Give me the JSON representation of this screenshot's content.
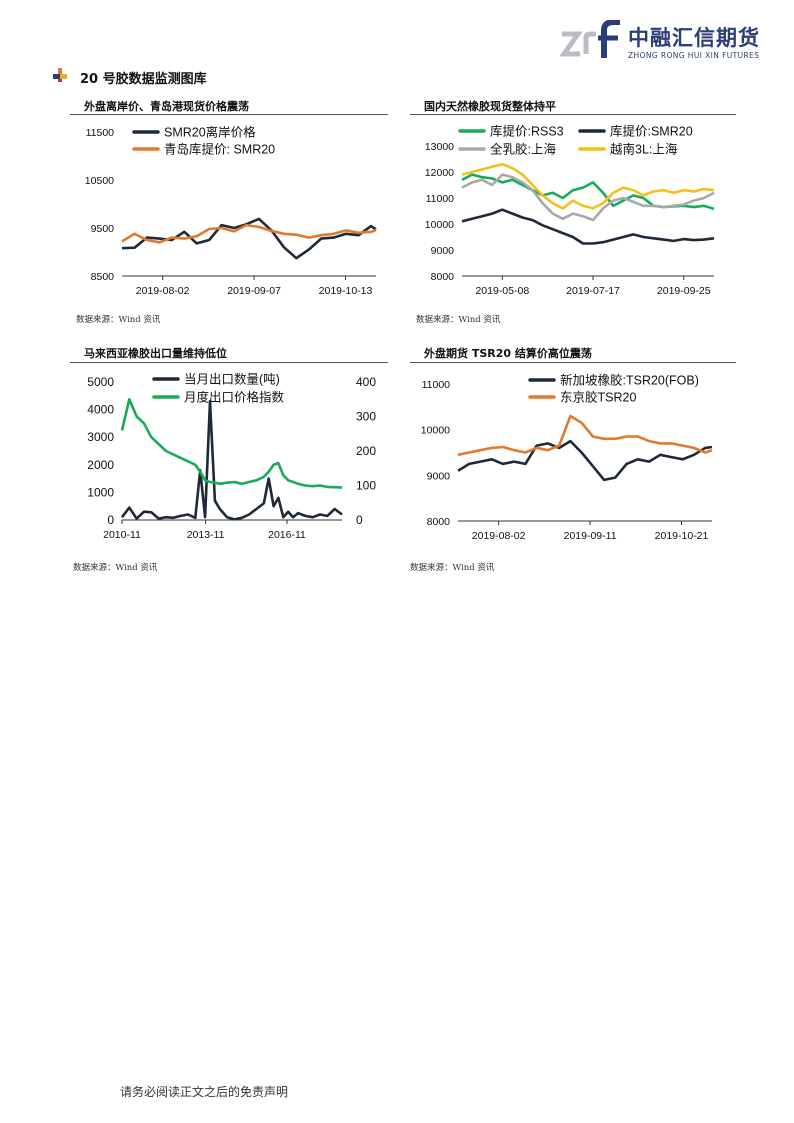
{
  "header": {
    "logo_cn": "中融汇信期货",
    "logo_en": "ZHONG RONG HUI XIN FUTURES"
  },
  "section_title": "20 号胶数据监测图库",
  "footer": "请务必阅读正文之后的免责声明",
  "charts": [
    {
      "title": "外盘离岸价、青岛港现货价格震荡",
      "source": "数据来源：Wind 资讯"
    },
    {
      "title": "国内天然橡胶现货整体持平",
      "source": "数据来源：Wind 资讯"
    },
    {
      "title": "马来西亚橡胶出口量维持低位",
      "source": "数据来源：Wind 资讯"
    },
    {
      "title": "外盘期货 TSR20 结算价高位震荡",
      "source": "数据来源：Wind 资讯"
    }
  ],
  "chart_data": [
    {
      "type": "line",
      "x_ticks": [
        "2019-08-02",
        "2019-09-07",
        "2019-10-13"
      ],
      "x": [
        0,
        5,
        10,
        15,
        20,
        25,
        30,
        35,
        40,
        45,
        50,
        55,
        60,
        65,
        70,
        75,
        80,
        85,
        90,
        95,
        100,
        102
      ],
      "ylim": [
        8500,
        11500
      ],
      "y_ticks": [
        8500,
        9500,
        10500,
        11500
      ],
      "legend_position": "top-left",
      "series": [
        {
          "name": "SMR20离岸价格",
          "color": "#1f2a38",
          "values": [
            9080,
            9090,
            9300,
            9280,
            9250,
            9420,
            9180,
            9250,
            9560,
            9500,
            9580,
            9690,
            9450,
            9100,
            8870,
            9050,
            9280,
            9300,
            9380,
            9350,
            9540,
            9470
          ]
        },
        {
          "name": "青岛库提价: SMR20",
          "color": "#e07a2e",
          "values": [
            9220,
            9380,
            9250,
            9200,
            9300,
            9280,
            9330,
            9480,
            9500,
            9430,
            9560,
            9520,
            9440,
            9380,
            9360,
            9300,
            9350,
            9380,
            9450,
            9400,
            9420,
            9460
          ]
        }
      ]
    },
    {
      "type": "line",
      "x_ticks": [
        "2019-05-08",
        "2019-07-17",
        "2019-09-25"
      ],
      "x": [
        0,
        6,
        12,
        18,
        24,
        30,
        36,
        42,
        48,
        54,
        60,
        66,
        72,
        78,
        84,
        90,
        96,
        102,
        108,
        114,
        120,
        126,
        132,
        138,
        144,
        150
      ],
      "ylim": [
        8000,
        13000
      ],
      "y_ticks": [
        8000,
        9000,
        10000,
        11000,
        12000,
        13000
      ],
      "legend_position": "top",
      "series": [
        {
          "name": "库提价:RSS3",
          "color": "#1aab5a",
          "values": [
            11700,
            11900,
            11800,
            11750,
            11600,
            11700,
            11500,
            11300,
            11100,
            11200,
            11000,
            11300,
            11400,
            11600,
            11200,
            10700,
            10900,
            11100,
            11000,
            10700,
            10650,
            10680,
            10700,
            10650,
            10700,
            10580
          ]
        },
        {
          "name": "库提价:SMR20",
          "color": "#1f2a38",
          "values": [
            10100,
            10200,
            10300,
            10400,
            10550,
            10400,
            10250,
            10150,
            9950,
            9800,
            9650,
            9500,
            9250,
            9250,
            9300,
            9400,
            9500,
            9600,
            9500,
            9450,
            9400,
            9350,
            9420,
            9380,
            9400,
            9450
          ]
        },
        {
          "name": "全乳胶:上海",
          "color": "#a8a8a8",
          "values": [
            11400,
            11600,
            11700,
            11500,
            11900,
            11800,
            11600,
            11300,
            10800,
            10400,
            10200,
            10400,
            10300,
            10150,
            10600,
            10900,
            11000,
            10850,
            10700,
            10700,
            10650,
            10700,
            10750,
            10900,
            11000,
            11200
          ]
        },
        {
          "name": "越南3L:上海",
          "color": "#f2c21b",
          "values": [
            11900,
            12000,
            12100,
            12200,
            12300,
            12150,
            11900,
            11500,
            11100,
            10800,
            10600,
            10900,
            10700,
            10600,
            10800,
            11200,
            11400,
            11300,
            11100,
            11250,
            11300,
            11200,
            11300,
            11250,
            11350,
            11300
          ]
        }
      ]
    },
    {
      "type": "line",
      "x_ticks": [
        "2010-11",
        "2013-11",
        "2016-11"
      ],
      "x": [
        0,
        3,
        6,
        9,
        12,
        15,
        18,
        21,
        24,
        27,
        30,
        32,
        34,
        36,
        38,
        40,
        43,
        46,
        49,
        52,
        55,
        58,
        60,
        62,
        64,
        66,
        68,
        70,
        72,
        75,
        78,
        81,
        84,
        87,
        90
      ],
      "ylim_left": [
        0,
        5000
      ],
      "y_ticks_left": [
        0,
        1000,
        2000,
        3000,
        4000,
        5000
      ],
      "ylim_right": [
        0,
        400
      ],
      "y_ticks_right": [
        0,
        100,
        200,
        300,
        400
      ],
      "legend_position": "top",
      "series": [
        {
          "name": "当月出口数量(吨)",
          "color": "#1f2a38",
          "axis": "left",
          "values": [
            100,
            450,
            50,
            300,
            280,
            50,
            100,
            80,
            150,
            200,
            80,
            1800,
            100,
            4300,
            700,
            400,
            100,
            20,
            80,
            200,
            400,
            600,
            1500,
            500,
            800,
            100,
            300,
            100,
            250,
            150,
            100,
            200,
            150,
            400,
            200
          ]
        },
        {
          "name": "月度出口价格指数",
          "color": "#1aab5a",
          "axis": "right",
          "values": [
            260,
            350,
            300,
            280,
            240,
            220,
            200,
            190,
            180,
            170,
            160,
            140,
            115,
            110,
            108,
            105,
            108,
            110,
            105,
            110,
            115,
            125,
            140,
            160,
            165,
            130,
            115,
            110,
            105,
            100,
            98,
            100,
            96,
            95,
            94
          ]
        }
      ]
    },
    {
      "type": "line",
      "x_ticks": [
        "2019-08-02",
        "2019-09-11",
        "2019-10-21"
      ],
      "x": [
        0,
        5,
        10,
        15,
        20,
        25,
        30,
        35,
        40,
        45,
        50,
        55,
        60,
        65,
        70,
        75,
        80,
        85,
        90,
        95,
        100,
        105,
        110,
        113
      ],
      "ylim": [
        8000,
        11000
      ],
      "y_ticks": [
        8000,
        9000,
        10000,
        11000
      ],
      "legend_position": "top",
      "series": [
        {
          "name": "新加坡橡胶:TSR20(FOB)",
          "color": "#1f2a38",
          "values": [
            9100,
            9250,
            9300,
            9350,
            9250,
            9300,
            9250,
            9650,
            9700,
            9600,
            9750,
            9500,
            9200,
            8900,
            8950,
            9250,
            9350,
            9300,
            9450,
            9400,
            9350,
            9450,
            9600,
            9620
          ]
        },
        {
          "name": "东京胶TSR20",
          "color": "#e07a2e",
          "values": [
            9450,
            9500,
            9550,
            9600,
            9620,
            9550,
            9500,
            9600,
            9550,
            9650,
            10300,
            10150,
            9850,
            9800,
            9800,
            9850,
            9850,
            9750,
            9700,
            9700,
            9650,
            9600,
            9500,
            9550
          ]
        }
      ]
    }
  ]
}
